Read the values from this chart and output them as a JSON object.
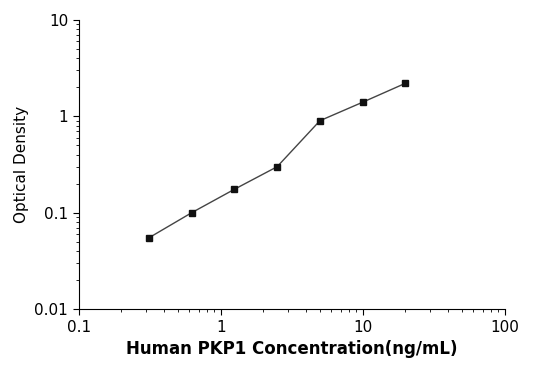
{
  "x": [
    0.313,
    0.625,
    1.25,
    2.5,
    5,
    10,
    20
  ],
  "y": [
    0.055,
    0.1,
    0.175,
    0.3,
    0.9,
    1.4,
    2.2
  ],
  "xlim": [
    0.1,
    100
  ],
  "ylim": [
    0.01,
    10
  ],
  "xlabel": "Human PKP1 Concentration(ng/mL)",
  "ylabel": "Optical Density",
  "line_color": "#444444",
  "marker_color": "#111111",
  "marker": "s",
  "marker_size": 5,
  "line_width": 1.0,
  "background_color": "#ffffff",
  "xlabel_fontsize": 12,
  "ylabel_fontsize": 11,
  "tick_fontsize": 11
}
